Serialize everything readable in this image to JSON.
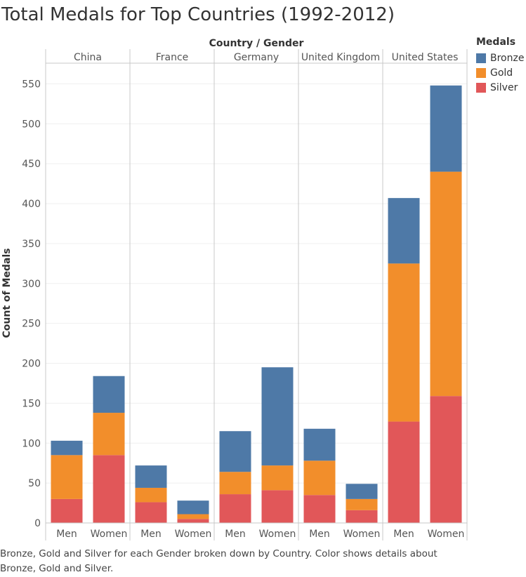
{
  "title": "Total Medals for Top Countries (1992-2012)",
  "caption": "Bronze, Gold and Silver for each Gender broken down by Country.  Color shows details about Bronze, Gold and Silver.",
  "chart_data": {
    "type": "bar",
    "stacked": true,
    "column_header": "Country / Gender",
    "ylabel": "Count of Medals",
    "ylim": [
      0,
      575
    ],
    "yticks": [
      0,
      50,
      100,
      150,
      200,
      250,
      300,
      350,
      400,
      450,
      500,
      550
    ],
    "grid": true,
    "legend_title": "Medals",
    "legend_position": "top-right",
    "groups": [
      "China",
      "France",
      "Germany",
      "United Kingdom",
      "United States"
    ],
    "categories": [
      "Men",
      "Women"
    ],
    "series": [
      {
        "name": "Silver",
        "color": "#e15759",
        "values": [
          [
            30,
            85
          ],
          [
            26,
            5
          ],
          [
            36,
            41
          ],
          [
            35,
            16
          ],
          [
            127,
            159
          ]
        ]
      },
      {
        "name": "Gold",
        "color": "#f28e2b",
        "values": [
          [
            55,
            53
          ],
          [
            18,
            6
          ],
          [
            28,
            31
          ],
          [
            43,
            14
          ],
          [
            198,
            281
          ]
        ]
      },
      {
        "name": "Bronze",
        "color": "#4e79a7",
        "values": [
          [
            18,
            46
          ],
          [
            28,
            17
          ],
          [
            51,
            123
          ],
          [
            40,
            19
          ],
          [
            82,
            108
          ]
        ]
      }
    ],
    "legend_order": [
      "Bronze",
      "Gold",
      "Silver"
    ]
  }
}
